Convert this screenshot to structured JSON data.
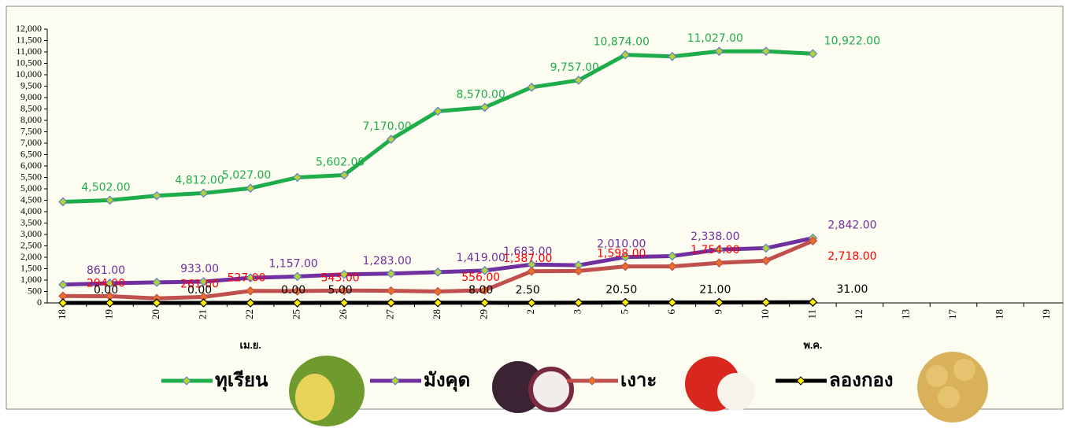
{
  "chart_data": {
    "type": "line",
    "categories": [
      "18",
      "19",
      "20",
      "21",
      "22",
      "25",
      "26",
      "27",
      "28",
      "29",
      "2",
      "3",
      "5",
      "6",
      "9",
      "10",
      "11",
      "12",
      "13",
      "17",
      "18",
      "19"
    ],
    "category_groups": [
      {
        "label": "เม.ย.",
        "from": 0,
        "to": 9
      },
      {
        "label": "พ.ค.",
        "from": 10,
        "to": 21
      }
    ],
    "ylim": [
      0,
      12000
    ],
    "yticks": [
      0,
      500,
      {
        "value": 1000,
        "label": "1,000"
      },
      {
        "value": 1500,
        "label": "1,500"
      },
      {
        "value": 2000,
        "label": "2,000"
      },
      {
        "value": 2500,
        "label": "2,500"
      },
      {
        "value": 3000,
        "label": "3,000"
      },
      {
        "value": 3500,
        "label": "3,500"
      },
      {
        "value": 4000,
        "label": "4,000"
      },
      {
        "value": 4500,
        "label": "4,500"
      },
      {
        "value": 5000,
        "label": "5,000"
      },
      {
        "value": 5500,
        "label": "5,500"
      },
      {
        "value": 6000,
        "label": "6,000"
      },
      {
        "value": 6500,
        "label": "6,500"
      },
      {
        "value": 7000,
        "label": "7,000"
      },
      {
        "value": 7500,
        "label": "7,500"
      },
      {
        "value": 8000,
        "label": "8,000"
      },
      {
        "value": 8500,
        "label": "8,500"
      },
      {
        "value": 9000,
        "label": "9,000"
      },
      {
        "value": 9500,
        "label": "9,500"
      },
      {
        "value": 10000,
        "label": "10,000"
      },
      {
        "value": 10500,
        "label": "10,500"
      },
      {
        "value": 11000,
        "label": "11,000"
      },
      {
        "value": 11500,
        "label": "11,500"
      },
      {
        "value": 12000,
        "label": "12,000"
      }
    ],
    "series": [
      {
        "name": "ทุเรียน",
        "color": "#1fad4c",
        "label_color": "#1fad4c",
        "values": [
          4430,
          4502,
          4700,
          4812,
          5027,
          5500,
          5602,
          7170,
          8400,
          8570,
          9450,
          9757,
          10874,
          10800,
          11027,
          11030,
          10922,
          null,
          null,
          null,
          null,
          null
        ],
        "value_labels": [
          null,
          "4,502.00",
          null,
          "4,812.00",
          "5,027.00",
          null,
          "5,602.00",
          "7,170.00",
          null,
          "8,570.00",
          null,
          "9,757.00",
          "10,874.00",
          null,
          "11,027.00",
          null,
          "10,922.00",
          null,
          null,
          null,
          null,
          null
        ]
      },
      {
        "name": "มังคุด",
        "color": "#7030a0",
        "label_color": "#7030a0",
        "values": [
          800,
          861,
          900,
          933,
          1100,
          1157,
          1250,
          1283,
          1350,
          1419,
          1683,
          1650,
          2010,
          2050,
          2338,
          2400,
          2842,
          null,
          null,
          null,
          null,
          null
        ],
        "value_labels": [
          null,
          "861.00",
          null,
          "933.00",
          null,
          "1,157.00",
          null,
          "1,283.00",
          null,
          "1,419.00",
          "1,683.00",
          null,
          "2,010.00",
          null,
          "2,338.00",
          null,
          "2,842.00",
          null,
          null,
          null,
          null,
          null
        ]
      },
      {
        "name": "เงาะ",
        "color": "#c0504d",
        "label_color": "#ff0000",
        "values": [
          300,
          294,
          200,
          261,
          527,
          520,
          543,
          530,
          500,
          556,
          1387,
          1400,
          1598,
          1600,
          1754,
          1850,
          2718,
          null,
          null,
          null,
          null,
          null
        ],
        "value_labels": [
          null,
          "294.00",
          null,
          "261.00",
          "527.00",
          null,
          "543.00",
          null,
          null,
          "556.00",
          "1,387.00",
          null,
          "1,598.00",
          null,
          "1,754.00",
          null,
          "2,718.00",
          null,
          null,
          null,
          null,
          null
        ]
      },
      {
        "name": "ลองกอง",
        "color": "#000000",
        "label_color": "#000000",
        "values": [
          0,
          0,
          0,
          0,
          0,
          0,
          5,
          5,
          8,
          8,
          2.5,
          10,
          20.5,
          20,
          21,
          25,
          31,
          null,
          null,
          null,
          null,
          null
        ],
        "value_labels": [
          null,
          "0.00",
          null,
          "0.00",
          null,
          "0.00",
          "5.00",
          null,
          null,
          "8.00",
          "2.50",
          null,
          "20.50",
          null,
          "21.00",
          null,
          "31.00",
          null,
          null,
          null,
          null,
          null
        ]
      }
    ]
  }
}
